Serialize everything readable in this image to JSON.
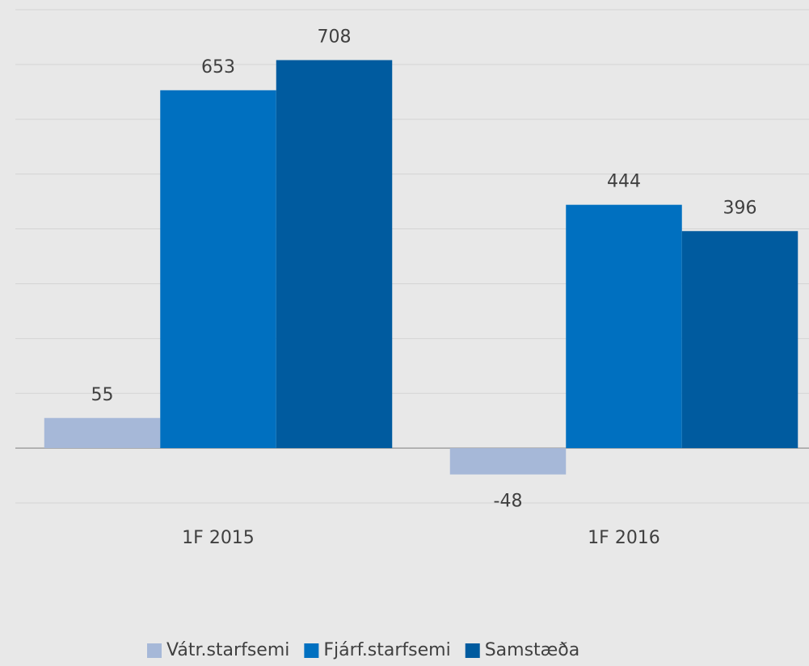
{
  "chart_data": {
    "type": "bar",
    "categories": [
      "1F 2015",
      "1F 2016"
    ],
    "series": [
      {
        "name": "Vátr.starfsemi",
        "color": "#a6b8d8",
        "values": [
          55,
          -48
        ]
      },
      {
        "name": "Fjárf.starfsemi",
        "color": "#0070c0",
        "values": [
          653,
          444
        ]
      },
      {
        "name": "Samstæða",
        "color": "#005b9f",
        "values": [
          708,
          396
        ]
      }
    ],
    "ylim": [
      -100,
      800
    ],
    "yticks": [
      -100,
      0,
      100,
      200,
      300,
      400,
      500,
      600,
      700,
      800
    ],
    "grid": true,
    "legend": "bottom"
  }
}
